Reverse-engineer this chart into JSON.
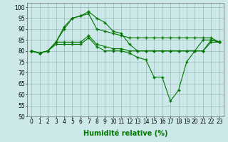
{
  "x": [
    0,
    1,
    2,
    3,
    4,
    5,
    6,
    7,
    8,
    9,
    10,
    11,
    12,
    13,
    14,
    15,
    16,
    17,
    18,
    19,
    20,
    21,
    22,
    23
  ],
  "line1": [
    80,
    79,
    80,
    84,
    90,
    95,
    96,
    98,
    95,
    93,
    89,
    88,
    83,
    80,
    80,
    80,
    80,
    80,
    80,
    80,
    80,
    85,
    85,
    84
  ],
  "line2": [
    80,
    79,
    80,
    84,
    91,
    95,
    96,
    97,
    90,
    89,
    88,
    87,
    86,
    86,
    86,
    86,
    86,
    86,
    86,
    86,
    86,
    86,
    86,
    84
  ],
  "line3": [
    80,
    79,
    80,
    83,
    83,
    83,
    83,
    86,
    82,
    80,
    80,
    80,
    79,
    77,
    76,
    68,
    68,
    57,
    62,
    75,
    80,
    80,
    85,
    84
  ],
  "line4": [
    80,
    79,
    80,
    84,
    84,
    84,
    84,
    87,
    83,
    82,
    81,
    81,
    80,
    80,
    80,
    80,
    80,
    80,
    80,
    80,
    80,
    80,
    84,
    84
  ],
  "bg_color": "#cce8e8",
  "line_color": "#007700",
  "grid_color": "#99bbbb",
  "xlabel": "Humidité relative (%)",
  "ylim": [
    50,
    102
  ],
  "xlim": [
    -0.5,
    23.5
  ],
  "yticks": [
    50,
    55,
    60,
    65,
    70,
    75,
    80,
    85,
    90,
    95,
    100
  ],
  "xticks": [
    0,
    1,
    2,
    3,
    4,
    5,
    6,
    7,
    8,
    9,
    10,
    11,
    12,
    13,
    14,
    15,
    16,
    17,
    18,
    19,
    20,
    21,
    22,
    23
  ],
  "xlabel_fontsize": 7,
  "tick_fontsize": 5.5,
  "marker": "+",
  "markersize": 2.5,
  "linewidth": 0.8
}
